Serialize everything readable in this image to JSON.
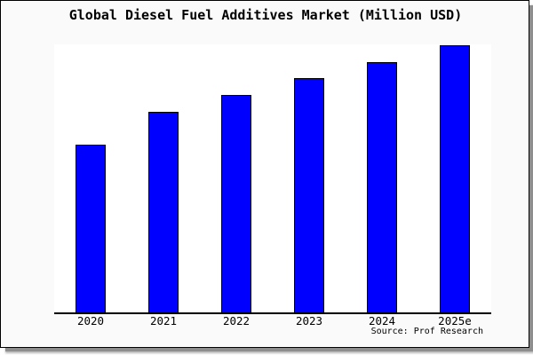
{
  "chart_data": {
    "type": "bar",
    "title": "Global Diesel Fuel Additives Market (Million USD)",
    "categories": [
      "2020",
      "2021",
      "2022",
      "2023",
      "2024",
      "2025e"
    ],
    "values": [
      189,
      226,
      245,
      264,
      282,
      301
    ],
    "xlabel": "",
    "ylabel": "",
    "ylim": [
      0,
      302
    ],
    "grid": false,
    "legend": false,
    "value_note": "No y-axis ticks or data labels are shown; values are relative bar heights estimated from pixels (plot height = 302)."
  },
  "source": {
    "label": "Source: Prof Research"
  },
  "colors": {
    "bar_fill": "#0000ff",
    "bar_border": "#000000",
    "axis": "#000000",
    "frame_background": "#fafafa",
    "plot_background": "#ffffff",
    "frame_border": "#000000",
    "shadow": "#8e8e8e",
    "text": "#000000"
  }
}
